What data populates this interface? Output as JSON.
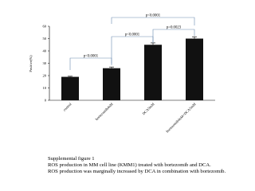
{
  "chart_data": {
    "type": "bar",
    "y_label": "Positive(%)",
    "categories": [
      "control",
      "bortezomib4nM",
      "DCA5mM",
      "bortezomib4nM+DCA5mM"
    ],
    "values": [
      19,
      26,
      45,
      50
    ],
    "errors": [
      0.5,
      1,
      1.5,
      1.5
    ],
    "color": "#111111",
    "ylim": [
      0,
      60
    ],
    "yticks": [
      0,
      10,
      20,
      30,
      40,
      50,
      60
    ],
    "grid": false,
    "annotations": [
      "p<0.0001",
      "p<0.0001",
      "p=0.0023",
      "p<0.0001"
    ]
  },
  "caption": [
    "Supplemental figure 1",
    "ROS production in MM cell line (KMM1) treated with bortezomib and DCA.",
    "ROS production was marginally increased by DCA in combination with bortezomib."
  ]
}
